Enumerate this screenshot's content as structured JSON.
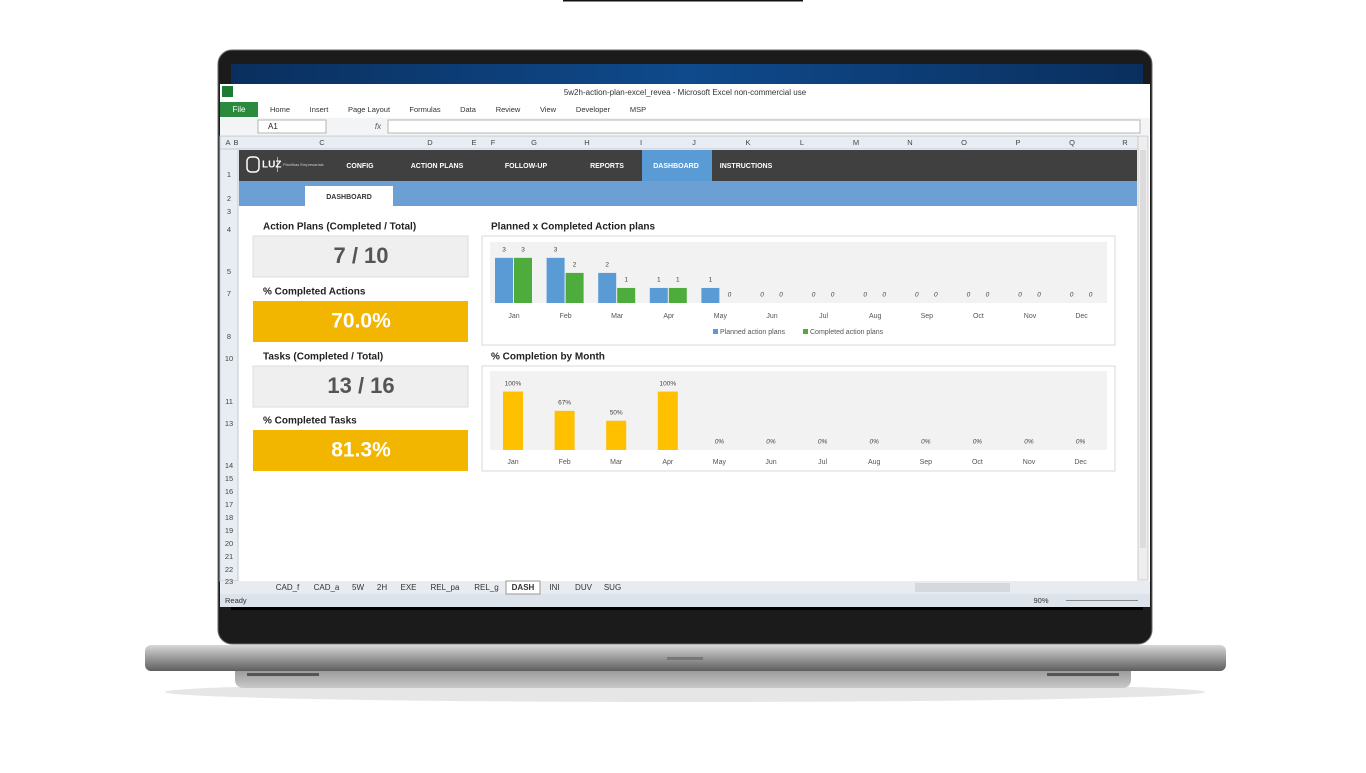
{
  "window": {
    "title": "5w2h-action-plan-excel_revea - Microsoft Excel non-commercial use"
  },
  "ribbon": {
    "file": "File",
    "tabs": [
      "Home",
      "Insert",
      "Page Layout",
      "Formulas",
      "Data",
      "Review",
      "View",
      "Developer",
      "MSP"
    ]
  },
  "formula_bar": {
    "name_box": "A1",
    "fx": "fx"
  },
  "columns": [
    "A",
    "B",
    "C",
    "D",
    "E",
    "F",
    "G",
    "H",
    "I",
    "J",
    "K",
    "L",
    "M",
    "N",
    "O",
    "P",
    "Q",
    "R"
  ],
  "rows": [
    1,
    2,
    3,
    4,
    5,
    7,
    8,
    10,
    11,
    13,
    14,
    15,
    16,
    17,
    18,
    19,
    20,
    21,
    22,
    23
  ],
  "nav": {
    "logo": "LUZ",
    "logo_sub": "Planilhas Empresariais",
    "items": [
      "CONFIG",
      "ACTION PLANS",
      "FOLLOW-UP",
      "REPORTS",
      "DASHBOARD",
      "INSTRUCTIONS"
    ],
    "active": 4,
    "sub_tab": "DASHBOARD"
  },
  "kpis": [
    {
      "label": "Action Plans (Completed / Total)",
      "value": "7 / 10",
      "style": "gray"
    },
    {
      "label": "% Completed Actions",
      "value": "70.0%",
      "style": "yellow"
    },
    {
      "label": "Tasks (Completed / Total)",
      "value": "13 / 16",
      "style": "gray"
    },
    {
      "label": "% Completed Tasks",
      "value": "81.3%",
      "style": "yellow"
    }
  ],
  "chart_data": [
    {
      "type": "bar",
      "title": "Planned x Completed Action plans",
      "categories": [
        "Jan",
        "Feb",
        "Mar",
        "Apr",
        "May",
        "Jun",
        "Jul",
        "Aug",
        "Sep",
        "Oct",
        "Nov",
        "Dec"
      ],
      "series": [
        {
          "name": "Planned action plans",
          "color": "#5b9bd5",
          "values": [
            3,
            3,
            2,
            1,
            1,
            0,
            0,
            0,
            0,
            0,
            0,
            0
          ]
        },
        {
          "name": "Completed action plans",
          "color": "#4eac3c",
          "values": [
            3,
            2,
            1,
            1,
            0,
            0,
            0,
            0,
            0,
            0,
            0,
            0
          ]
        }
      ],
      "legend": "bottom"
    },
    {
      "type": "bar",
      "title": "% Completion by Month",
      "categories": [
        "Jan",
        "Feb",
        "Mar",
        "Apr",
        "May",
        "Jun",
        "Jul",
        "Aug",
        "Sep",
        "Oct",
        "Nov",
        "Dec"
      ],
      "values": [
        100,
        67,
        50,
        100,
        0,
        0,
        0,
        0,
        0,
        0,
        0,
        0
      ],
      "value_labels": [
        "100%",
        "67%",
        "50%",
        "100%",
        "0%",
        "0%",
        "0%",
        "0%",
        "0%",
        "0%",
        "0%",
        "0%"
      ],
      "color": "#ffc000"
    }
  ],
  "sheet_tabs": [
    "CAD_f",
    "CAD_a",
    "5W",
    "2H",
    "EXE",
    "REL_pa",
    "REL_g",
    "DASH",
    "INI",
    "DUV",
    "SUG"
  ],
  "active_sheet": 7,
  "status": {
    "ready": "Ready",
    "zoom": "90%"
  }
}
